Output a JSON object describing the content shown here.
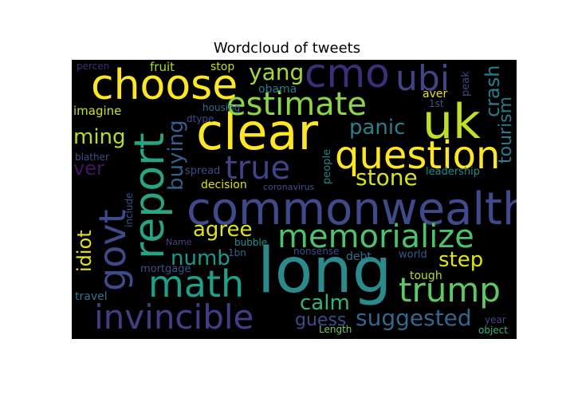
{
  "title": "Wordcloud of tweets",
  "words": [
    {
      "text": "long",
      "color": "#2a8a8c"
    },
    {
      "text": "commonwealth",
      "color": "#3f4a8a"
    },
    {
      "text": "clear",
      "color": "#fde725"
    },
    {
      "text": "choose",
      "color": "#fde725"
    },
    {
      "text": "report",
      "color": "#26a484"
    },
    {
      "text": "uk",
      "color": "#c2df23"
    },
    {
      "text": "question",
      "color": "#fde725"
    },
    {
      "text": "cmo",
      "color": "#3b2f7b"
    },
    {
      "text": "estimate",
      "color": "#8ad647"
    },
    {
      "text": "math",
      "color": "#1fa088"
    },
    {
      "text": "trump",
      "color": "#5ec962"
    },
    {
      "text": "memorialize",
      "color": "#4cc26c"
    },
    {
      "text": "govt",
      "color": "#3e4a89"
    },
    {
      "text": "invincible",
      "color": "#433d84"
    },
    {
      "text": "true",
      "color": "#404387"
    },
    {
      "text": "ubi",
      "color": "#414487"
    },
    {
      "text": "suggested",
      "color": "#31688e"
    },
    {
      "text": "yang",
      "color": "#a5db36"
    },
    {
      "text": "stone",
      "color": "#d8e219"
    },
    {
      "text": "panic",
      "color": "#2c7e8e"
    },
    {
      "text": "crash",
      "color": "#287d8e"
    },
    {
      "text": "tourism",
      "color": "#297b8e"
    },
    {
      "text": "buying",
      "color": "#355f8d"
    },
    {
      "text": "agree",
      "color": "#dde318"
    },
    {
      "text": "ming",
      "color": "#b5de2b"
    },
    {
      "text": "ver",
      "color": "#471365"
    },
    {
      "text": "numb",
      "color": "#1f978b"
    },
    {
      "text": "idiot",
      "color": "#e5e419"
    },
    {
      "text": "step",
      "color": "#dde318"
    },
    {
      "text": "calm",
      "color": "#32b67a"
    },
    {
      "text": "guess",
      "color": "#3e4c8a"
    },
    {
      "text": "fruit",
      "color": "#a8db34"
    },
    {
      "text": "stop",
      "color": "#bddf26"
    },
    {
      "text": "obama",
      "color": "#287c8e"
    },
    {
      "text": "housing",
      "color": "#2e6f8e"
    },
    {
      "text": "dtype",
      "color": "#3f4889"
    },
    {
      "text": "imagine",
      "color": "#cae11f"
    },
    {
      "text": "peak",
      "color": "#3e4989"
    },
    {
      "text": "aver",
      "color": "#e5e419"
    },
    {
      "text": "1st",
      "color": "#3b518b"
    },
    {
      "text": "percen",
      "color": "#3b2f7b"
    },
    {
      "text": "blather",
      "color": "#3d4e8a"
    },
    {
      "text": "spread",
      "color": "#3d4d8a"
    },
    {
      "text": "decision",
      "color": "#d8e219"
    },
    {
      "text": "coronavirus",
      "color": "#3b528b"
    },
    {
      "text": "people",
      "color": "#25838e"
    },
    {
      "text": "leadership",
      "color": "#23898e"
    },
    {
      "text": "include",
      "color": "#39558c"
    },
    {
      "text": "Name",
      "color": "#414487"
    },
    {
      "text": "bubble",
      "color": "#1f958b"
    },
    {
      "text": "1bn",
      "color": "#33638d"
    },
    {
      "text": "nonsense",
      "color": "#3e4a89"
    },
    {
      "text": "debt",
      "color": "#2d708e"
    },
    {
      "text": "world",
      "color": "#38598c"
    },
    {
      "text": "mortgage",
      "color": "#3b528b"
    },
    {
      "text": "tough",
      "color": "#b5de2b"
    },
    {
      "text": "travel",
      "color": "#2c738e"
    },
    {
      "text": "Length",
      "color": "#6ccd5a"
    },
    {
      "text": "year",
      "color": "#3e4989"
    },
    {
      "text": "object",
      "color": "#35b779"
    }
  ]
}
